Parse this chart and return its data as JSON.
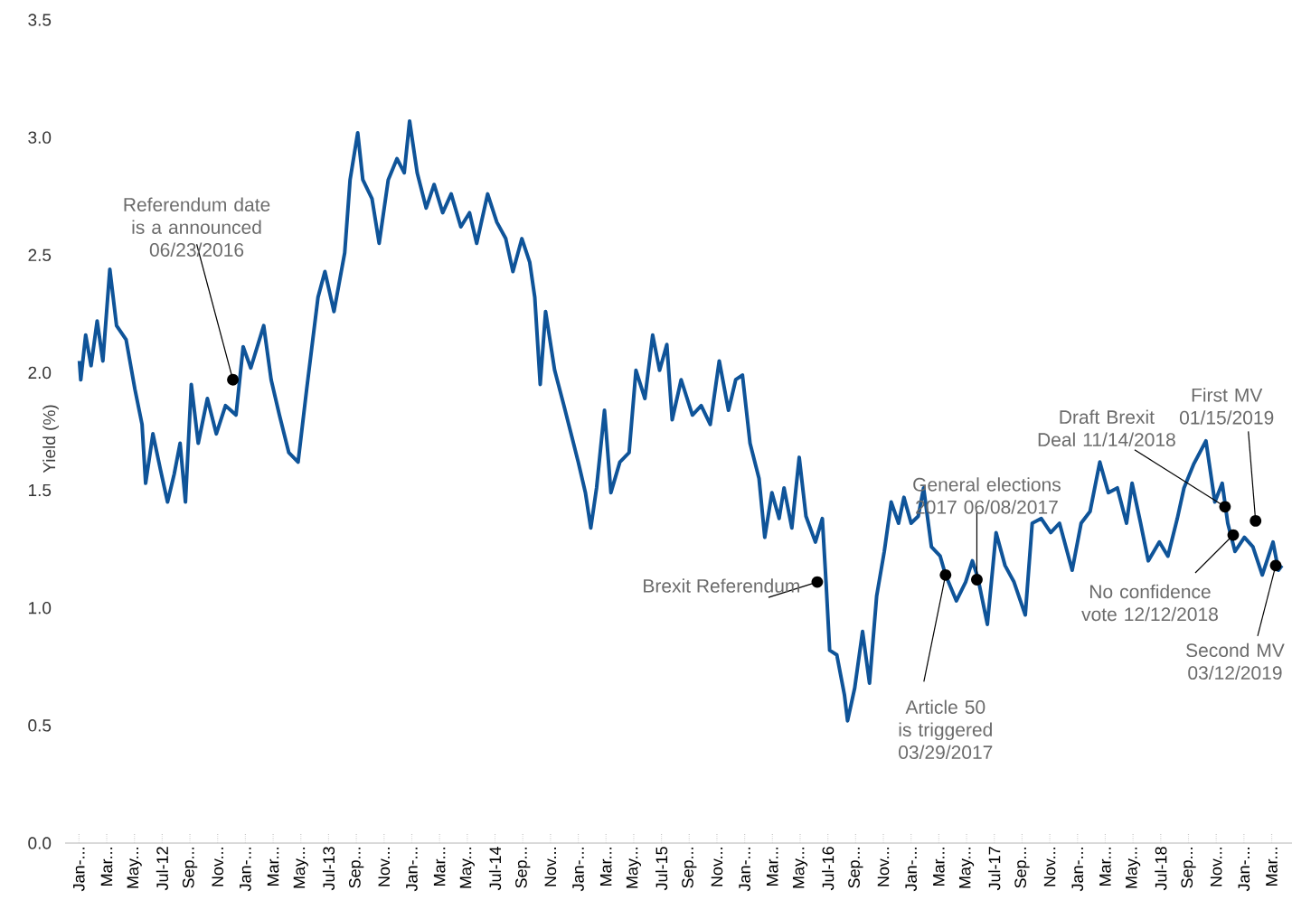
{
  "chart_data": {
    "type": "line",
    "ylabel": "Yield (%)",
    "color": "#0f5499",
    "xlim": [
      "2011-12-01",
      "2019-04-15"
    ],
    "ylim": [
      0,
      3.5
    ],
    "yticks": [
      {
        "value": 0,
        "label": "0.0"
      },
      {
        "value": 0.5,
        "label": "0.5"
      },
      {
        "value": 1,
        "label": "1.0"
      },
      {
        "value": 1.5,
        "label": "1.5"
      },
      {
        "value": 2,
        "label": "2.0"
      },
      {
        "value": 2.5,
        "label": "2.5"
      },
      {
        "value": 3,
        "label": "3.0"
      },
      {
        "value": 3.5,
        "label": "3.5"
      }
    ],
    "xticks": [
      {
        "value": "2012-01-01",
        "label": "Jan-..."
      },
      {
        "value": "2012-03-01",
        "label": "Mar..."
      },
      {
        "value": "2012-05-01",
        "label": "May..."
      },
      {
        "value": "2012-07-01",
        "label": "Jul-12"
      },
      {
        "value": "2012-09-01",
        "label": "Sep..."
      },
      {
        "value": "2012-11-01",
        "label": "Nov..."
      },
      {
        "value": "2013-01-01",
        "label": "Jan-..."
      },
      {
        "value": "2013-03-01",
        "label": "Mar..."
      },
      {
        "value": "2013-05-01",
        "label": "May..."
      },
      {
        "value": "2013-07-01",
        "label": "Jul-13"
      },
      {
        "value": "2013-09-01",
        "label": "Sep..."
      },
      {
        "value": "2013-11-01",
        "label": "Nov..."
      },
      {
        "value": "2014-01-01",
        "label": "Jan-..."
      },
      {
        "value": "2014-03-01",
        "label": "Mar..."
      },
      {
        "value": "2014-05-01",
        "label": "May..."
      },
      {
        "value": "2014-07-01",
        "label": "Jul-14"
      },
      {
        "value": "2014-09-01",
        "label": "Sep..."
      },
      {
        "value": "2014-11-01",
        "label": "Nov..."
      },
      {
        "value": "2015-01-01",
        "label": "Jan-..."
      },
      {
        "value": "2015-03-01",
        "label": "Mar..."
      },
      {
        "value": "2015-05-01",
        "label": "May..."
      },
      {
        "value": "2015-07-01",
        "label": "Jul-15"
      },
      {
        "value": "2015-09-01",
        "label": "Sep..."
      },
      {
        "value": "2015-11-01",
        "label": "Nov..."
      },
      {
        "value": "2016-01-01",
        "label": "Jan-..."
      },
      {
        "value": "2016-03-01",
        "label": "Mar..."
      },
      {
        "value": "2016-05-01",
        "label": "May..."
      },
      {
        "value": "2016-07-01",
        "label": "Jul-16"
      },
      {
        "value": "2016-09-01",
        "label": "Sep..."
      },
      {
        "value": "2016-11-01",
        "label": "Nov..."
      },
      {
        "value": "2017-01-01",
        "label": "Jan-..."
      },
      {
        "value": "2017-03-01",
        "label": "Mar..."
      },
      {
        "value": "2017-05-01",
        "label": "May..."
      },
      {
        "value": "2017-07-01",
        "label": "Jul-17"
      },
      {
        "value": "2017-09-01",
        "label": "Sep..."
      },
      {
        "value": "2017-11-01",
        "label": "Nov..."
      },
      {
        "value": "2018-01-01",
        "label": "Jan-..."
      },
      {
        "value": "2018-03-01",
        "label": "Mar..."
      },
      {
        "value": "2018-05-01",
        "label": "May..."
      },
      {
        "value": "2018-07-01",
        "label": "Jul-18"
      },
      {
        "value": "2018-09-01",
        "label": "Sep..."
      },
      {
        "value": "2018-11-01",
        "label": "Nov..."
      },
      {
        "value": "2019-01-01",
        "label": "Jan-..."
      },
      {
        "value": "2019-03-01",
        "label": "Mar..."
      }
    ],
    "x": [
      "2012-01-02",
      "2012-01-05",
      "2012-01-16",
      "2012-01-28",
      "2012-02-10",
      "2012-02-22",
      "2012-03-08",
      "2012-03-23",
      "2012-04-13",
      "2012-05-02",
      "2012-05-18",
      "2012-05-26",
      "2012-06-11",
      "2012-06-27",
      "2012-07-13",
      "2012-07-28",
      "2012-08-10",
      "2012-08-22",
      "2012-09-04",
      "2012-09-19",
      "2012-10-09",
      "2012-10-29",
      "2012-11-18",
      "2012-12-11",
      "2012-12-27",
      "2013-01-13",
      "2013-02-10",
      "2013-02-25",
      "2013-03-15",
      "2013-04-05",
      "2013-04-25",
      "2013-05-14",
      "2013-06-08",
      "2013-06-23",
      "2013-07-13",
      "2013-08-06",
      "2013-08-18",
      "2013-09-04",
      "2013-09-15",
      "2013-10-05",
      "2013-10-21",
      "2013-11-10",
      "2013-11-29",
      "2013-12-15",
      "2013-12-27",
      "2014-01-13",
      "2014-02-02",
      "2014-02-18",
      "2014-03-08",
      "2014-03-27",
      "2014-04-17",
      "2014-05-06",
      "2014-05-22",
      "2014-06-15",
      "2014-07-05",
      "2014-07-25",
      "2014-08-10",
      "2014-08-30",
      "2014-09-16",
      "2014-09-27",
      "2014-10-09",
      "2014-10-21",
      "2014-11-10",
      "2014-11-30",
      "2014-12-16",
      "2015-01-01",
      "2015-01-17",
      "2015-01-29",
      "2015-02-10",
      "2015-02-26",
      "2015-03-12",
      "2015-04-01",
      "2015-04-21",
      "2015-05-06",
      "2015-05-26",
      "2015-06-12",
      "2015-06-27",
      "2015-07-13",
      "2015-07-25",
      "2015-08-14",
      "2015-09-08",
      "2015-09-27",
      "2015-10-17",
      "2015-11-06",
      "2015-11-26",
      "2015-12-12",
      "2015-12-27",
      "2016-01-13",
      "2016-02-02",
      "2016-02-14",
      "2016-02-29",
      "2016-03-16",
      "2016-03-27",
      "2016-04-13",
      "2016-04-29",
      "2016-05-14",
      "2016-06-04",
      "2016-06-19",
      "2016-06-27",
      "2016-07-05",
      "2016-07-21",
      "2016-08-07",
      "2016-08-14",
      "2016-08-30",
      "2016-09-16",
      "2016-10-01",
      "2016-10-17",
      "2016-11-03",
      "2016-11-18",
      "2016-12-04",
      "2016-12-16",
      "2017-01-01",
      "2017-01-17",
      "2017-01-29",
      "2017-02-14",
      "2017-03-04",
      "2017-03-16",
      "2017-04-09",
      "2017-04-29",
      "2017-05-14",
      "2017-05-26",
      "2017-06-16",
      "2017-07-05",
      "2017-07-25",
      "2017-08-14",
      "2017-09-08",
      "2017-09-23",
      "2017-10-13",
      "2017-11-03",
      "2017-11-22",
      "2017-12-20",
      "2018-01-09",
      "2018-01-29",
      "2018-02-18",
      "2018-03-08",
      "2018-03-28",
      "2018-04-17",
      "2018-04-29",
      "2018-05-18",
      "2018-06-04",
      "2018-06-28",
      "2018-07-17",
      "2018-08-07",
      "2018-08-22",
      "2018-09-12",
      "2018-10-09",
      "2018-10-29",
      "2018-11-14",
      "2018-11-26",
      "2018-12-12",
      "2019-01-02",
      "2019-01-21",
      "2019-02-10",
      "2019-03-04",
      "2019-03-16",
      "2019-03-24"
    ],
    "values": [
      2.05,
      1.97,
      2.16,
      2.03,
      2.22,
      2.05,
      2.44,
      2.2,
      2.14,
      1.93,
      1.78,
      1.53,
      1.74,
      1.59,
      1.45,
      1.57,
      1.7,
      1.45,
      1.95,
      1.7,
      1.89,
      1.74,
      1.86,
      1.82,
      2.11,
      2.02,
      2.2,
      1.97,
      1.82,
      1.66,
      1.62,
      1.93,
      2.32,
      2.43,
      2.26,
      2.51,
      2.82,
      3.02,
      2.82,
      2.74,
      2.55,
      2.82,
      2.91,
      2.85,
      3.07,
      2.85,
      2.7,
      2.8,
      2.68,
      2.76,
      2.62,
      2.68,
      2.55,
      2.76,
      2.64,
      2.57,
      2.43,
      2.57,
      2.47,
      2.32,
      1.95,
      2.26,
      2.01,
      1.86,
      1.74,
      1.62,
      1.49,
      1.34,
      1.51,
      1.84,
      1.49,
      1.62,
      1.66,
      2.01,
      1.89,
      2.16,
      2.01,
      2.12,
      1.8,
      1.97,
      1.82,
      1.86,
      1.78,
      2.05,
      1.84,
      1.97,
      1.99,
      1.7,
      1.55,
      1.3,
      1.49,
      1.38,
      1.51,
      1.34,
      1.64,
      1.39,
      1.28,
      1.38,
      1.11,
      0.82,
      0.8,
      0.63,
      0.52,
      0.66,
      0.9,
      0.68,
      1.05,
      1.24,
      1.45,
      1.36,
      1.47,
      1.36,
      1.39,
      1.51,
      1.26,
      1.22,
      1.14,
      1.03,
      1.11,
      1.2,
      1.13,
      0.93,
      1.32,
      1.18,
      1.11,
      0.97,
      1.36,
      1.38,
      1.32,
      1.36,
      1.16,
      1.36,
      1.41,
      1.62,
      1.49,
      1.51,
      1.36,
      1.53,
      1.36,
      1.2,
      1.28,
      1.22,
      1.38,
      1.51,
      1.61,
      1.71,
      1.45,
      1.53,
      1.36,
      1.24,
      1.3,
      1.26,
      1.14,
      1.28,
      1.16,
      1.18
    ],
    "annotations": [
      {
        "text": "Referendum date is a announced 06/23/2016",
        "x": "2012-12-04",
        "y": 1.97
      },
      {
        "text": "Brexit Referendum",
        "x": "2016-06-08",
        "y": 1.11
      },
      {
        "text": "Article 50 is triggered 03/29/2017",
        "x": "2017-03-16",
        "y": 1.14
      },
      {
        "text": "General elections 2017 06/08/2017",
        "x": "2017-05-24",
        "y": 1.12
      },
      {
        "text": "Draft Brexit Deal 11/14/2018",
        "x": "2018-11-20",
        "y": 1.43
      },
      {
        "text": "No confidence vote 12/12/2018",
        "x": "2018-12-08",
        "y": 1.31
      },
      {
        "text": "First MV 01/15/2019",
        "x": "2019-01-27",
        "y": 1.37
      },
      {
        "text": "Second MV 03/12/2019",
        "x": "2019-03-10",
        "y": 1.18
      }
    ]
  }
}
